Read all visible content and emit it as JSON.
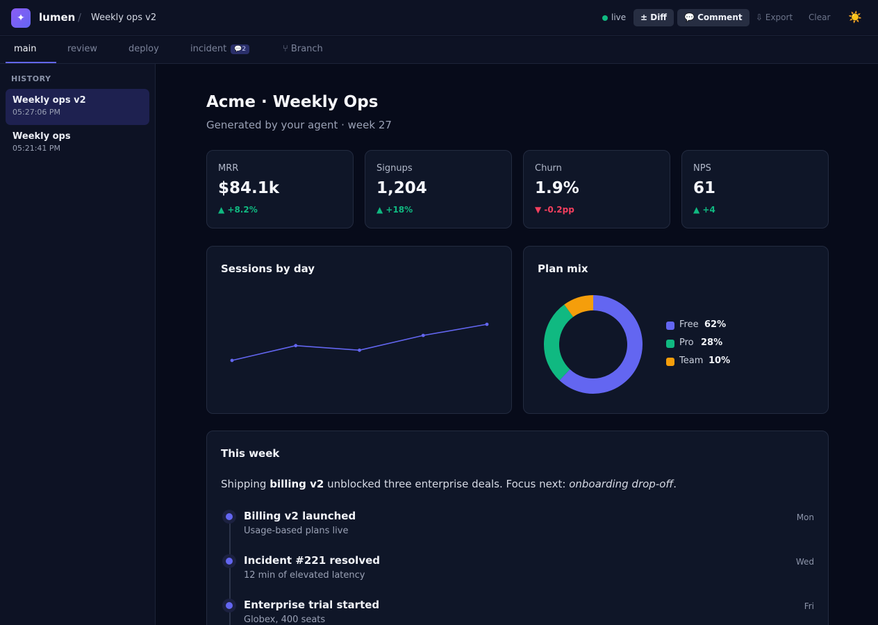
{
  "app": {
    "logo_glyph": "✦",
    "brand": "lumen",
    "separator": "/",
    "doc_title": "Weekly ops v2"
  },
  "toolbar": {
    "status": "live",
    "status_color": "#10b981",
    "diff_label": "± Diff",
    "comment_label": "💬 Comment",
    "export_label": "⇩ Export",
    "clear_label": "Clear",
    "theme_icon": "☀️"
  },
  "tabs": [
    {
      "label": "main",
      "active": true
    },
    {
      "label": "review"
    },
    {
      "label": "deploy"
    },
    {
      "label": "incident",
      "badge": "💬2"
    },
    {
      "label": "⑂ Branch"
    }
  ],
  "sidebar": {
    "heading": "HISTORY",
    "items": [
      {
        "title": "Weekly ops v2",
        "time": "05:27:06 PM",
        "active": true
      },
      {
        "title": "Weekly ops",
        "time": "05:21:41 PM"
      }
    ]
  },
  "page": {
    "title": "Acme · Weekly Ops",
    "subtitle": "Generated by your agent · week 27"
  },
  "kpis": [
    {
      "label": "MRR",
      "value": "$84.1k",
      "delta": "▲ +8.2%",
      "trend": "up"
    },
    {
      "label": "Signups",
      "value": "1,204",
      "delta": "▲ +18%",
      "trend": "up"
    },
    {
      "label": "Churn",
      "value": "1.9%",
      "delta": "▼ -0.2pp",
      "trend": "down"
    },
    {
      "label": "NPS",
      "value": "61",
      "delta": "▲ +4",
      "trend": "up"
    }
  ],
  "sessions_card": {
    "title": "Sessions by day"
  },
  "plan_card": {
    "title": "Plan mix"
  },
  "chart_data": [
    {
      "type": "line",
      "title": "Sessions by day",
      "x": [
        1,
        2,
        3,
        4,
        5
      ],
      "series": [
        {
          "values": [
            42,
            58,
            53,
            69,
            81
          ],
          "color": "#6366f1"
        }
      ],
      "ylim": [
        0,
        120
      ],
      "grid": false
    },
    {
      "type": "pie",
      "title": "Plan mix",
      "donut": true,
      "labels": [
        "Free",
        "Pro",
        "Team"
      ],
      "values": [
        62,
        28,
        10
      ],
      "value_labels": [
        "62%",
        "28%",
        "10%"
      ],
      "colors": [
        "#6366f1",
        "#10b981",
        "#f59e0b"
      ],
      "legend": "right"
    }
  ],
  "week": {
    "title": "This week",
    "summary_pre": "Shipping ",
    "summary_bold": "billing v2",
    "summary_mid": " unblocked three enterprise deals. Focus next: ",
    "summary_em": "onboarding drop-off",
    "summary_end": ".",
    "events": [
      {
        "title": "Billing v2 launched",
        "sub": "Usage-based plans live",
        "day": "Mon"
      },
      {
        "title": "Incident #221 resolved",
        "sub": "12 min of elevated latency",
        "day": "Wed"
      },
      {
        "title": "Enterprise trial started",
        "sub": "Globex, 400 seats",
        "day": "Fri"
      }
    ]
  }
}
